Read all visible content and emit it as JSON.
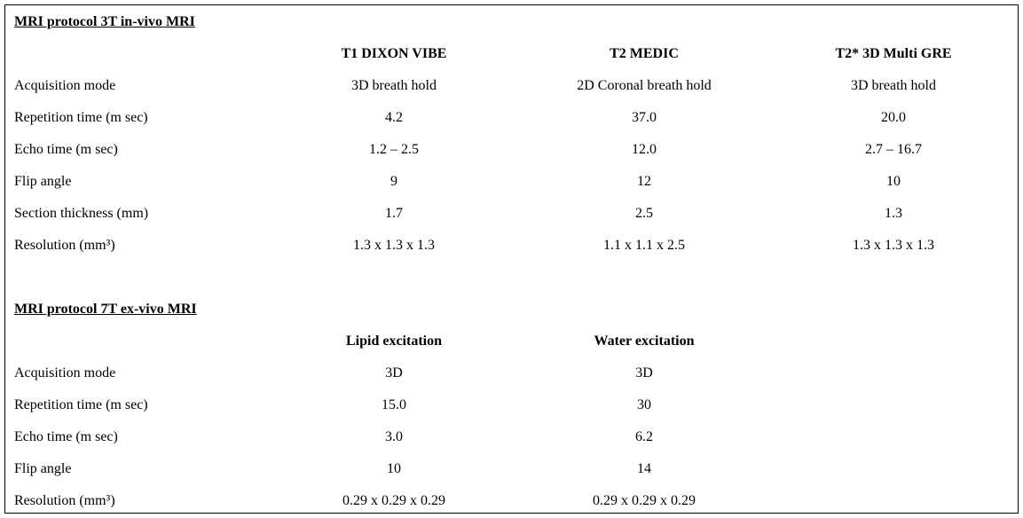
{
  "sections": [
    {
      "title": "MRI protocol 3T in-vivo MRI",
      "columns": [
        "T1 DIXON VIBE",
        "T2 MEDIC",
        "T2* 3D Multi GRE"
      ],
      "rows": [
        [
          "Acquisition mode",
          "3D breath hold",
          "2D Coronal breath hold",
          "3D breath hold"
        ],
        [
          "Repetition time (m sec)",
          "4.2",
          "37.0",
          "20.0"
        ],
        [
          "Echo time (m sec)",
          "1.2 – 2.5",
          "12.0",
          "2.7 – 16.7"
        ],
        [
          "Flip angle",
          "9",
          "12",
          "10"
        ],
        [
          "Section thickness (mm)",
          "1.7",
          "2.5",
          "1.3"
        ],
        [
          "Resolution (mm³)",
          "1.3 x 1.3 x 1.3",
          "1.1 x 1.1 x 2.5",
          "1.3 x 1.3 x 1.3"
        ]
      ]
    },
    {
      "title": "MRI protocol 7T ex-vivo MRI",
      "columns": [
        "Lipid excitation",
        "Water excitation"
      ],
      "rows": [
        [
          "Acquisition mode",
          "3D",
          "3D"
        ],
        [
          "Repetition time (m sec)",
          "15.0",
          "30"
        ],
        [
          "Echo time (m sec)",
          "3.0",
          "6.2"
        ],
        [
          "Flip angle",
          "10",
          "14"
        ],
        [
          "Resolution (mm³)",
          "0.29 x 0.29 x 0.29",
          "0.29 x 0.29 x 0.29"
        ]
      ]
    }
  ]
}
